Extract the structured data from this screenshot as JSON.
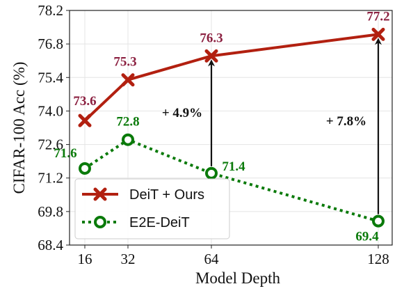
{
  "chart_data": {
    "type": "line",
    "x": [
      16,
      32,
      64,
      128
    ],
    "x_ticks": [
      "16",
      "32",
      "64",
      "128"
    ],
    "y_ticks": [
      "68.4",
      "69.8",
      "71.2",
      "72.6",
      "74.0",
      "75.4",
      "76.8",
      "78.2"
    ],
    "ylim": [
      68.4,
      78.2
    ],
    "xlabel": "Model Depth",
    "ylabel": "CIFAR-100 Acc (%)",
    "grid": true,
    "legend_position": "bottom-left",
    "series": [
      {
        "name": "DeiT + Ours",
        "values": [
          73.6,
          75.3,
          76.3,
          77.2
        ],
        "labels": [
          "73.6",
          "75.3",
          "76.3",
          "77.2"
        ],
        "color": "#b22010",
        "label_color": "#8b2040",
        "marker": "x",
        "style": "solid"
      },
      {
        "name": "E2E-DeiT",
        "values": [
          71.6,
          72.8,
          71.4,
          69.4
        ],
        "labels": [
          "71.6",
          "72.8",
          "71.4",
          "69.4"
        ],
        "color": "#0a7a0a",
        "label_color": "#0a7a0a",
        "marker": "o",
        "style": "dotted"
      }
    ],
    "annotations": [
      {
        "text": "+ 4.9%",
        "x": 64,
        "from": 71.4,
        "to": 76.3
      },
      {
        "text": "+ 7.8%",
        "x": 128,
        "from": 69.4,
        "to": 77.2
      }
    ]
  }
}
